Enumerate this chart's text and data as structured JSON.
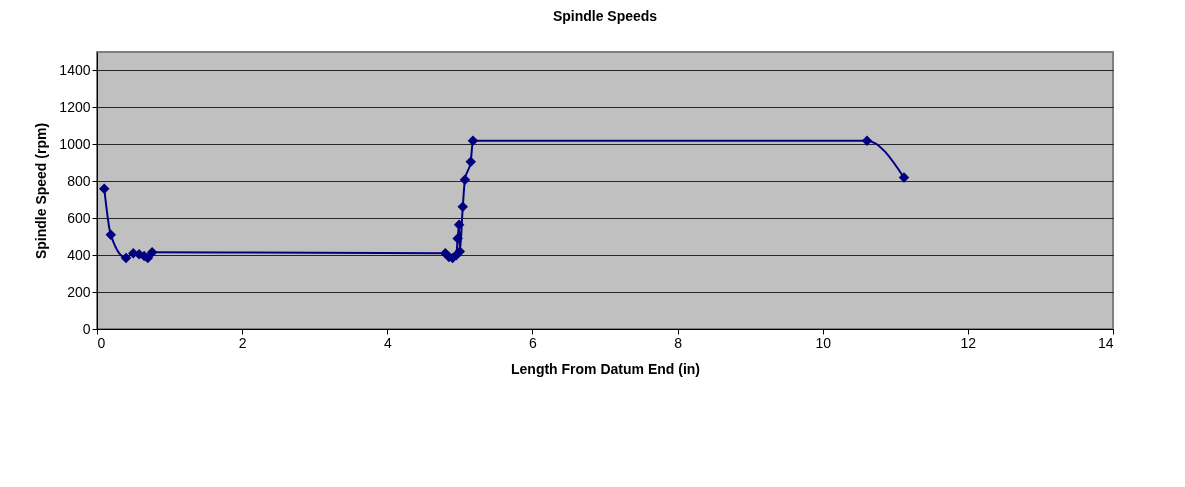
{
  "chart_data": {
    "type": "line",
    "title": "Spindle Speeds",
    "xlabel": "Length From Datum End (in)",
    "ylabel": "Spindle Speed (rpm)",
    "x": [
      0.1,
      0.19,
      0.4,
      0.5,
      0.58,
      0.65,
      0.7,
      0.76,
      4.8,
      4.85,
      4.9,
      4.95,
      4.97,
      4.99,
      5.0,
      5.04,
      5.07,
      5.15,
      5.18,
      10.61,
      11.12
    ],
    "series": [
      {
        "color": "#000080",
        "values": [
          760,
          510,
          385,
          410,
          405,
          395,
          385,
          415,
          410,
          390,
          385,
          400,
          490,
          565,
          420,
          662,
          808,
          906,
          1020,
          1020,
          820
        ]
      }
    ],
    "xlim": [
      0,
      14
    ],
    "xticks": [
      0,
      2,
      4,
      6,
      8,
      10,
      12,
      14
    ],
    "ylim": [
      0,
      1500
    ],
    "yticks": [
      0,
      200,
      400,
      600,
      800,
      1000,
      1200,
      1400
    ],
    "grid": "y",
    "marker": "diamond",
    "line_style": "solid"
  }
}
